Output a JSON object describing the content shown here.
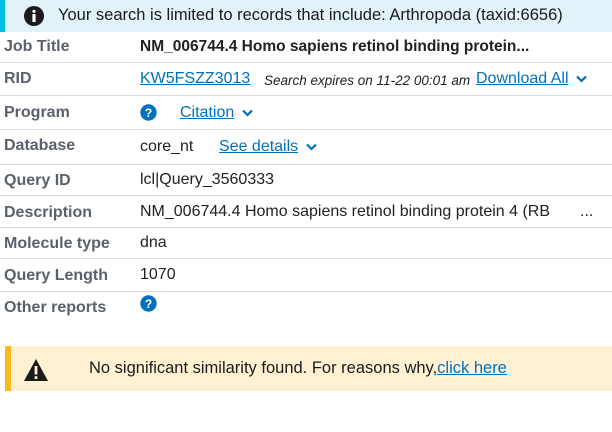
{
  "banner": {
    "text": "Your search is limited to records that include: Arthropoda (taxid:6656)",
    "icon": "info-icon",
    "color": "#e1f3f8",
    "accent": "#02bfe7"
  },
  "rows": {
    "job_title": {
      "label": "Job Title",
      "value": "NM_006744.4 Homo sapiens retinol binding protein..."
    },
    "rid": {
      "label": "RID",
      "value": "KW5FSZZ3013",
      "expires": "Search expires on 11-22 00:01 am",
      "download": "Download All"
    },
    "program": {
      "label": "Program",
      "citation": "Citation",
      "icon": "help-icon"
    },
    "database": {
      "label": "Database",
      "value": "core_nt",
      "details": "See details"
    },
    "query_id": {
      "label": "Query ID",
      "value": "lcl|Query_3560333"
    },
    "description": {
      "label": "Description",
      "value": "NM_006744.4 Homo sapiens retinol binding protein 4 (RB",
      "ellipsis": "..."
    },
    "molecule_type": {
      "label": "Molecule type",
      "value": "dna"
    },
    "query_length": {
      "label": "Query Length",
      "value": "1070"
    },
    "other_reports": {
      "label": "Other reports",
      "icon": "help-icon"
    }
  },
  "warning": {
    "text": "No significant similarity found. For reasons why,",
    "link": "click here",
    "icon": "warning-icon",
    "color": "#fff1d2",
    "accent": "#fdb81e"
  },
  "colors": {
    "link": "#0071bc",
    "label": "#5b616b",
    "divider": "#dcdcdc"
  }
}
